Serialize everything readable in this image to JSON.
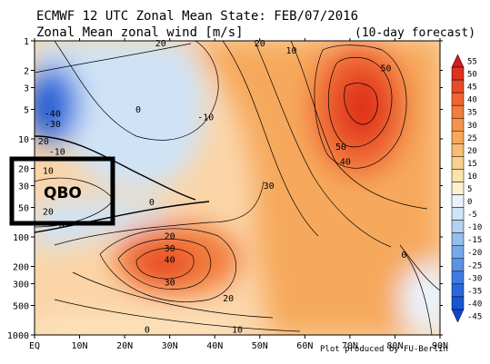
{
  "chart_data": {
    "type": "heatmap",
    "title": "ECMWF 12 UTC Zonal Mean State: FEB/07/2016",
    "subtitle": "Zonal Mean zonal wind [m/s]",
    "forecast_note": "(10-day forecast)",
    "credit": "Plot produced by FU-Berlin",
    "x_axis": {
      "ticks": [
        "EQ",
        "10N",
        "20N",
        "30N",
        "40N",
        "50N",
        "60N",
        "70N",
        "80N",
        "90N"
      ],
      "values": [
        0,
        10,
        20,
        30,
        40,
        50,
        60,
        70,
        80,
        90
      ],
      "range": [
        0,
        90
      ]
    },
    "y_axis": {
      "ticks": [
        "1",
        "2",
        "3",
        "5",
        "10",
        "20",
        "30",
        "50",
        "100",
        "200",
        "300",
        "500",
        "1000"
      ],
      "values": [
        1,
        2,
        3,
        5,
        10,
        20,
        30,
        50,
        100,
        200,
        300,
        500,
        1000
      ],
      "scale": "log",
      "inverted": true,
      "range": [
        1,
        1000
      ]
    },
    "colorbar": {
      "levels": [
        55,
        50,
        45,
        40,
        35,
        30,
        25,
        20,
        15,
        10,
        5,
        0,
        -5,
        -10,
        -15,
        -20,
        -25,
        -30,
        -35,
        -40,
        -45
      ],
      "colors": [
        "#d7191c",
        "#e0321f",
        "#e94b26",
        "#ef6531",
        "#f27d3c",
        "#f49349",
        "#f6a95b",
        "#f8bd72",
        "#f9d08c",
        "#fbe2ab",
        "#fdf0d0",
        "#eaf3fb",
        "#cfe3f7",
        "#b3d1f2",
        "#95bdee",
        "#77a8ea",
        "#5a92e6",
        "#3f7ce2",
        "#2a67dd",
        "#1a55d6",
        "#1044cc"
      ]
    },
    "contour_labels": [
      {
        "lat": 28,
        "p": 1.05,
        "value": "20"
      },
      {
        "lat": 50,
        "p": 1.05,
        "value": "20"
      },
      {
        "lat": 57,
        "p": 1.25,
        "value": "10"
      },
      {
        "lat": 78,
        "p": 1.9,
        "value": "50"
      },
      {
        "lat": 4,
        "p": 5.5,
        "value": "-40"
      },
      {
        "lat": 4,
        "p": 7,
        "value": "-30"
      },
      {
        "lat": 23,
        "p": 5,
        "value": "0"
      },
      {
        "lat": 38,
        "p": 6,
        "value": "-10"
      },
      {
        "lat": 2,
        "p": 10.5,
        "value": "20"
      },
      {
        "lat": 5,
        "p": 13.5,
        "value": "-10"
      },
      {
        "lat": 68,
        "p": 12,
        "value": "50"
      },
      {
        "lat": 69,
        "p": 17,
        "value": "40"
      },
      {
        "lat": 3,
        "p": 21,
        "value": "10"
      },
      {
        "lat": 52,
        "p": 30,
        "value": "30"
      },
      {
        "lat": 3,
        "p": 55,
        "value": "20"
      },
      {
        "lat": 26,
        "p": 44,
        "value": "0"
      },
      {
        "lat": 6,
        "p": 75,
        "value": "0"
      },
      {
        "lat": 30,
        "p": 98,
        "value": "20"
      },
      {
        "lat": 30,
        "p": 130,
        "value": "30"
      },
      {
        "lat": 30,
        "p": 170,
        "value": "40"
      },
      {
        "lat": 82,
        "p": 152,
        "value": "0"
      },
      {
        "lat": 30,
        "p": 290,
        "value": "30"
      },
      {
        "lat": 43,
        "p": 420,
        "value": "20"
      },
      {
        "lat": 25,
        "p": 880,
        "value": "0"
      },
      {
        "lat": 45,
        "p": 880,
        "value": "10"
      }
    ]
  },
  "annotation": {
    "label": "QBO"
  }
}
